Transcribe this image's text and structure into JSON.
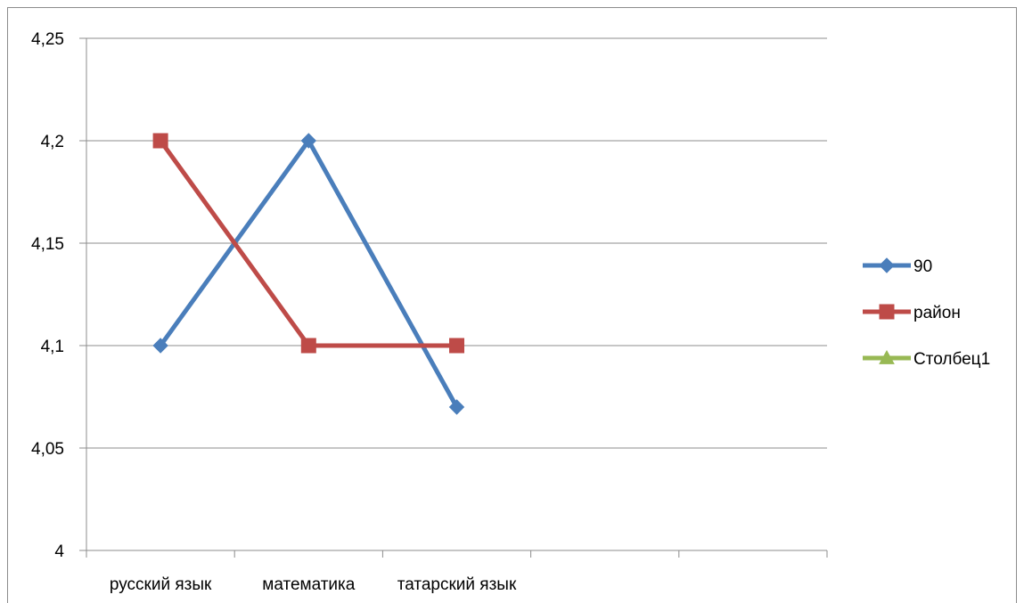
{
  "chart_data": {
    "type": "line",
    "categories": [
      "русский язык",
      "математика",
      "татарский язык",
      "",
      ""
    ],
    "series": [
      {
        "name": "90",
        "color": "#4a7ebb",
        "marker": "diamond",
        "values": [
          4.1,
          4.2,
          4.07,
          null,
          null
        ]
      },
      {
        "name": "район",
        "color": "#be4b48",
        "marker": "square",
        "values": [
          4.2,
          4.1,
          4.1,
          null,
          null
        ]
      },
      {
        "name": "Столбец1",
        "color": "#98b954",
        "marker": "triangle",
        "values": [
          null,
          null,
          null,
          null,
          null
        ]
      }
    ],
    "y_ticks": [
      "4",
      "4,05",
      "4,1",
      "4,15",
      "4,2",
      "4,25"
    ],
    "y_tick_values": [
      4,
      4.05,
      4.1,
      4.15,
      4.2,
      4.25
    ],
    "ylim": [
      4,
      4.25
    ],
    "grid": true,
    "legend_position": "right"
  }
}
